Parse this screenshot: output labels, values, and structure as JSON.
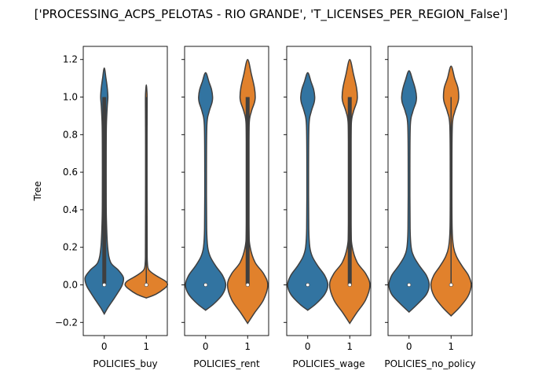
{
  "chart_data": {
    "type": "violin",
    "title": "['PROCESSING_ACPS_PELOTAS - RIO GRANDE', 'T_LICENSES_PER_REGION_False']",
    "ylabel": "Tree",
    "ylim": [
      -0.27,
      1.27
    ],
    "yticks": [
      -0.2,
      0.0,
      0.2,
      0.4,
      0.6,
      0.8,
      1.0,
      1.2
    ],
    "ytick_labels": [
      "−0.2",
      "0.0",
      "0.2",
      "0.4",
      "0.6",
      "0.8",
      "1.0",
      "1.2"
    ],
    "shared_y": true,
    "colors": {
      "0": "#3274a1",
      "1": "#e1812c",
      "edge": "#3f3f3f"
    },
    "panels": [
      {
        "xlabel": "POLICIES_buy",
        "categories": [
          "0",
          "1"
        ],
        "violins": [
          {
            "category": "0",
            "color": "#3274a1",
            "median": 0.0,
            "q1": 0.0,
            "q3": 1.0,
            "whisker_low": 0.0,
            "whisker_high": 1.0,
            "profile": [
              [
                -0.155,
                0.0
              ],
              [
                -0.12,
                0.18
              ],
              [
                -0.08,
                0.42
              ],
              [
                -0.04,
                0.65
              ],
              [
                0.0,
                0.85
              ],
              [
                0.04,
                0.9
              ],
              [
                0.08,
                0.65
              ],
              [
                0.12,
                0.3
              ],
              [
                0.2,
                0.16
              ],
              [
                0.35,
                0.1
              ],
              [
                0.5,
                0.09
              ],
              [
                0.7,
                0.09
              ],
              [
                0.85,
                0.1
              ],
              [
                0.95,
                0.14
              ],
              [
                1.0,
                0.17
              ],
              [
                1.05,
                0.14
              ],
              [
                1.1,
                0.08
              ],
              [
                1.155,
                0.0
              ]
            ]
          },
          {
            "category": "1",
            "color": "#e1812c",
            "median": 0.0,
            "q1": 0.0,
            "q3": 0.0,
            "whisker_low": 0.0,
            "whisker_high": 1.0,
            "profile": [
              [
                -0.07,
                0.0
              ],
              [
                -0.05,
                0.45
              ],
              [
                -0.02,
                0.85
              ],
              [
                0.0,
                1.0
              ],
              [
                0.02,
                0.9
              ],
              [
                0.05,
                0.45
              ],
              [
                0.08,
                0.12
              ],
              [
                0.12,
                0.05
              ],
              [
                0.2,
                0.04
              ],
              [
                0.5,
                0.035
              ],
              [
                0.8,
                0.035
              ],
              [
                0.95,
                0.04
              ],
              [
                1.0,
                0.04
              ],
              [
                1.03,
                0.03
              ],
              [
                1.065,
                0.0
              ]
            ]
          }
        ]
      },
      {
        "xlabel": "POLICIES_rent",
        "categories": [
          "0",
          "1"
        ],
        "violins": [
          {
            "category": "0",
            "color": "#3274a1",
            "median": 0.0,
            "q1": 0.0,
            "q3": 0.0,
            "whisker_low": 0.0,
            "whisker_high": 0.0,
            "profile": [
              [
                -0.135,
                0.0
              ],
              [
                -0.1,
                0.4
              ],
              [
                -0.05,
                0.8
              ],
              [
                0.0,
                0.95
              ],
              [
                0.05,
                0.8
              ],
              [
                0.1,
                0.48
              ],
              [
                0.15,
                0.22
              ],
              [
                0.2,
                0.1
              ],
              [
                0.3,
                0.05
              ],
              [
                0.6,
                0.04
              ],
              [
                0.85,
                0.06
              ],
              [
                0.92,
                0.16
              ],
              [
                0.97,
                0.3
              ],
              [
                1.0,
                0.33
              ],
              [
                1.04,
                0.28
              ],
              [
                1.08,
                0.16
              ],
              [
                1.13,
                0.0
              ]
            ]
          },
          {
            "category": "1",
            "color": "#e1812c",
            "median": 0.0,
            "q1": 0.0,
            "q3": 1.0,
            "whisker_low": 0.0,
            "whisker_high": 1.0,
            "profile": [
              [
                -0.205,
                0.0
              ],
              [
                -0.15,
                0.32
              ],
              [
                -0.08,
                0.75
              ],
              [
                0.0,
                0.95
              ],
              [
                0.06,
                0.75
              ],
              [
                0.12,
                0.35
              ],
              [
                0.2,
                0.12
              ],
              [
                0.3,
                0.06
              ],
              [
                0.6,
                0.05
              ],
              [
                0.85,
                0.07
              ],
              [
                0.92,
                0.17
              ],
              [
                0.97,
                0.32
              ],
              [
                1.0,
                0.36
              ],
              [
                1.05,
                0.32
              ],
              [
                1.12,
                0.18
              ],
              [
                1.2,
                0.0
              ]
            ]
          }
        ]
      },
      {
        "xlabel": "POLICIES_wage",
        "categories": [
          "0",
          "1"
        ],
        "violins": [
          {
            "category": "0",
            "color": "#3274a1",
            "median": 0.0,
            "q1": 0.0,
            "q3": 0.0,
            "whisker_low": 0.0,
            "whisker_high": 0.0,
            "profile": [
              [
                -0.135,
                0.0
              ],
              [
                -0.1,
                0.4
              ],
              [
                -0.05,
                0.8
              ],
              [
                0.0,
                0.95
              ],
              [
                0.05,
                0.8
              ],
              [
                0.1,
                0.48
              ],
              [
                0.15,
                0.22
              ],
              [
                0.2,
                0.1
              ],
              [
                0.3,
                0.05
              ],
              [
                0.6,
                0.04
              ],
              [
                0.85,
                0.06
              ],
              [
                0.92,
                0.16
              ],
              [
                0.97,
                0.3
              ],
              [
                1.0,
                0.33
              ],
              [
                1.04,
                0.28
              ],
              [
                1.08,
                0.16
              ],
              [
                1.13,
                0.0
              ]
            ]
          },
          {
            "category": "1",
            "color": "#e1812c",
            "median": 0.0,
            "q1": 0.0,
            "q3": 1.0,
            "whisker_low": 0.0,
            "whisker_high": 1.0,
            "profile": [
              [
                -0.205,
                0.0
              ],
              [
                -0.15,
                0.32
              ],
              [
                -0.08,
                0.75
              ],
              [
                0.0,
                0.95
              ],
              [
                0.06,
                0.75
              ],
              [
                0.12,
                0.35
              ],
              [
                0.2,
                0.12
              ],
              [
                0.3,
                0.06
              ],
              [
                0.6,
                0.05
              ],
              [
                0.85,
                0.07
              ],
              [
                0.92,
                0.17
              ],
              [
                0.97,
                0.32
              ],
              [
                1.0,
                0.36
              ],
              [
                1.05,
                0.32
              ],
              [
                1.12,
                0.18
              ],
              [
                1.2,
                0.0
              ]
            ]
          }
        ]
      },
      {
        "xlabel": "POLICIES_no_policy",
        "categories": [
          "0",
          "1"
        ],
        "violins": [
          {
            "category": "0",
            "color": "#3274a1",
            "median": 0.0,
            "q1": 0.0,
            "q3": 0.0,
            "whisker_low": 0.0,
            "whisker_high": 0.0,
            "profile": [
              [
                -0.145,
                0.0
              ],
              [
                -0.1,
                0.42
              ],
              [
                -0.05,
                0.82
              ],
              [
                0.0,
                0.95
              ],
              [
                0.05,
                0.82
              ],
              [
                0.1,
                0.5
              ],
              [
                0.15,
                0.23
              ],
              [
                0.2,
                0.1
              ],
              [
                0.3,
                0.05
              ],
              [
                0.6,
                0.04
              ],
              [
                0.85,
                0.06
              ],
              [
                0.92,
                0.17
              ],
              [
                0.97,
                0.32
              ],
              [
                1.0,
                0.35
              ],
              [
                1.04,
                0.3
              ],
              [
                1.09,
                0.17
              ],
              [
                1.14,
                0.0
              ]
            ]
          },
          {
            "category": "1",
            "color": "#e1812c",
            "median": 0.0,
            "q1": 0.0,
            "q3": 0.0,
            "whisker_low": 0.0,
            "whisker_high": 1.0,
            "profile": [
              [
                -0.165,
                0.0
              ],
              [
                -0.12,
                0.4
              ],
              [
                -0.06,
                0.8
              ],
              [
                0.0,
                0.95
              ],
              [
                0.05,
                0.82
              ],
              [
                0.1,
                0.52
              ],
              [
                0.15,
                0.26
              ],
              [
                0.2,
                0.12
              ],
              [
                0.3,
                0.05
              ],
              [
                0.6,
                0.04
              ],
              [
                0.85,
                0.06
              ],
              [
                0.92,
                0.17
              ],
              [
                0.97,
                0.32
              ],
              [
                1.0,
                0.36
              ],
              [
                1.05,
                0.32
              ],
              [
                1.1,
                0.17
              ],
              [
                1.165,
                0.0
              ]
            ]
          }
        ]
      }
    ]
  }
}
